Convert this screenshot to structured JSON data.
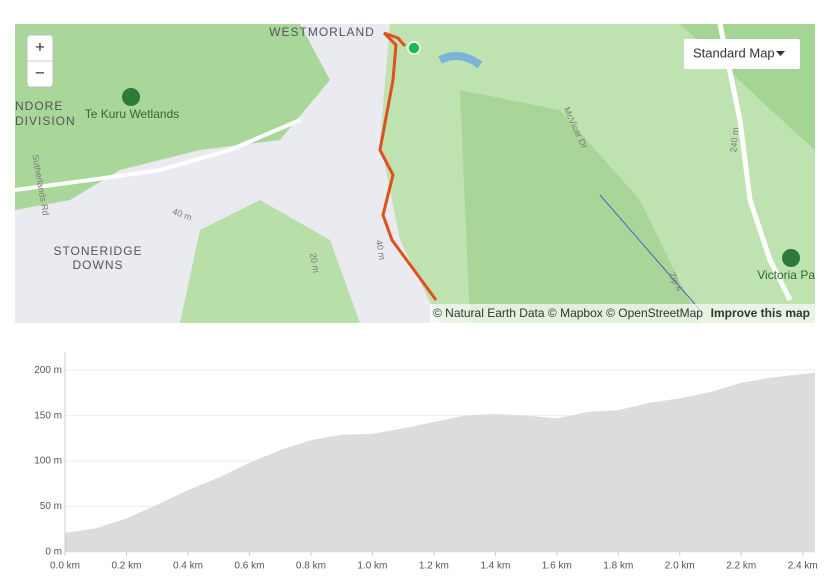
{
  "map": {
    "style_button": "Standard Map",
    "zoom_in": "+",
    "zoom_out": "−",
    "labels": [
      "WESTMORLAND",
      "NDORE",
      "DIVISION",
      "Te Kuru Wetlands",
      "Sutherlands Rd",
      "STONERIDGE",
      "DOWNS",
      "McVicar Dr",
      "Victoria Pa",
      "40 m",
      "20 m",
      "40 m",
      "240 m",
      "Zip 4"
    ],
    "attribution": "© Natural Earth Data © Mapbox © OpenStreetMap",
    "improve": "Improve this map"
  },
  "chart_data": {
    "type": "area",
    "color": "#dcdcdc",
    "x": [
      0,
      0.1,
      0.2,
      0.3,
      0.4,
      0.5,
      0.6,
      0.7,
      0.8,
      0.9,
      1.0,
      1.1,
      1.2,
      1.3,
      1.4,
      1.5,
      1.6,
      1.7,
      1.8,
      1.9,
      2.0,
      2.1,
      2.2,
      2.3,
      2.4,
      2.44
    ],
    "values": [
      21,
      26,
      37,
      52,
      68,
      82,
      98,
      112,
      123,
      129,
      130,
      136,
      143,
      150,
      152,
      150,
      147,
      154,
      156,
      164,
      169,
      176,
      186,
      192,
      196,
      197
    ],
    "xlim": [
      0,
      2.44
    ],
    "ylim": [
      0,
      220
    ],
    "xticks": [
      {
        "value": 0,
        "label": "0.0 km"
      },
      {
        "value": 0.2,
        "label": "0.2 km"
      },
      {
        "value": 0.4,
        "label": "0.4 km"
      },
      {
        "value": 0.6,
        "label": "0.6 km"
      },
      {
        "value": 0.8,
        "label": "0.8 km"
      },
      {
        "value": 1.0,
        "label": "1.0 km"
      },
      {
        "value": 1.2,
        "label": "1.2 km"
      },
      {
        "value": 1.4,
        "label": "1.4 km"
      },
      {
        "value": 1.6,
        "label": "1.6 km"
      },
      {
        "value": 1.8,
        "label": "1.8 km"
      },
      {
        "value": 2.0,
        "label": "2.0 km"
      },
      {
        "value": 2.2,
        "label": "2.2 km"
      },
      {
        "value": 2.4,
        "label": "2.4 km"
      }
    ],
    "yticks": [
      {
        "value": 0,
        "label": "0 m"
      },
      {
        "value": 50,
        "label": "50 m"
      },
      {
        "value": 100,
        "label": "100 m"
      },
      {
        "value": 150,
        "label": "150 m"
      },
      {
        "value": 200,
        "label": "200 m"
      }
    ],
    "grid": true
  }
}
